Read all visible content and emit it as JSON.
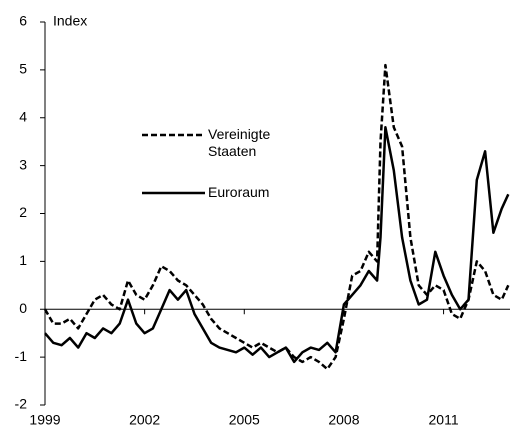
{
  "chart_data": {
    "type": "line",
    "y_label": "Index",
    "xlim": [
      1999,
      2013
    ],
    "xticks": [
      1999,
      2002,
      2005,
      2008,
      2011
    ],
    "ylim": [
      -2,
      6
    ],
    "yticks": [
      -2,
      -1,
      0,
      1,
      2,
      3,
      4,
      5,
      6
    ],
    "x": [
      1999.0,
      1999.25,
      1999.5,
      1999.75,
      2000.0,
      2000.25,
      2000.5,
      2000.75,
      2001.0,
      2001.25,
      2001.5,
      2001.75,
      2002.0,
      2002.25,
      2002.5,
      2002.75,
      2003.0,
      2003.25,
      2003.5,
      2003.75,
      2004.0,
      2004.25,
      2004.5,
      2004.75,
      2005.0,
      2005.25,
      2005.5,
      2005.75,
      2006.0,
      2006.25,
      2006.5,
      2006.75,
      2007.0,
      2007.25,
      2007.5,
      2007.75,
      2008.0,
      2008.25,
      2008.5,
      2008.75,
      2009.0,
      2009.1,
      2009.25,
      2009.5,
      2009.75,
      2010.0,
      2010.25,
      2010.5,
      2010.75,
      2011.0,
      2011.25,
      2011.5,
      2011.75,
      2012.0,
      2012.25,
      2012.5,
      2012.75,
      2012.95
    ],
    "series": [
      {
        "name": "Vereinigte Staaten",
        "color": "#000000",
        "dash": true,
        "values": [
          0,
          -0.3,
          -0.3,
          -0.2,
          -0.4,
          -0.1,
          0.2,
          0.3,
          0.1,
          0.0,
          0.6,
          0.3,
          0.2,
          0.5,
          0.9,
          0.8,
          0.6,
          0.5,
          0.3,
          0.1,
          -0.2,
          -0.4,
          -0.5,
          -0.6,
          -0.7,
          -0.8,
          -0.7,
          -0.8,
          -0.9,
          -0.8,
          -1.0,
          -1.1,
          -1.0,
          -1.1,
          -1.25,
          -1.0,
          -0.2,
          0.7,
          0.8,
          1.2,
          1.0,
          3.5,
          5.1,
          3.8,
          3.4,
          1.5,
          0.5,
          0.3,
          0.5,
          0.4,
          -0.1,
          -0.2,
          0.2,
          1.0,
          0.8,
          0.3,
          0.2,
          0.5
        ]
      },
      {
        "name": "Euroraum",
        "color": "#000000",
        "dash": false,
        "values": [
          -0.5,
          -0.7,
          -0.75,
          -0.6,
          -0.8,
          -0.5,
          -0.6,
          -0.4,
          -0.5,
          -0.3,
          0.2,
          -0.3,
          -0.5,
          -0.4,
          0.0,
          0.4,
          0.2,
          0.4,
          -0.1,
          -0.4,
          -0.7,
          -0.8,
          -0.85,
          -0.9,
          -0.8,
          -0.95,
          -0.8,
          -1.0,
          -0.9,
          -0.8,
          -1.1,
          -0.9,
          -0.8,
          -0.85,
          -0.7,
          -0.9,
          0.1,
          0.3,
          0.5,
          0.8,
          0.6,
          1.5,
          3.8,
          2.9,
          1.5,
          0.6,
          0.1,
          0.2,
          1.2,
          0.7,
          0.3,
          0.0,
          0.2,
          2.7,
          3.3,
          1.6,
          2.1,
          2.4
        ]
      }
    ]
  }
}
